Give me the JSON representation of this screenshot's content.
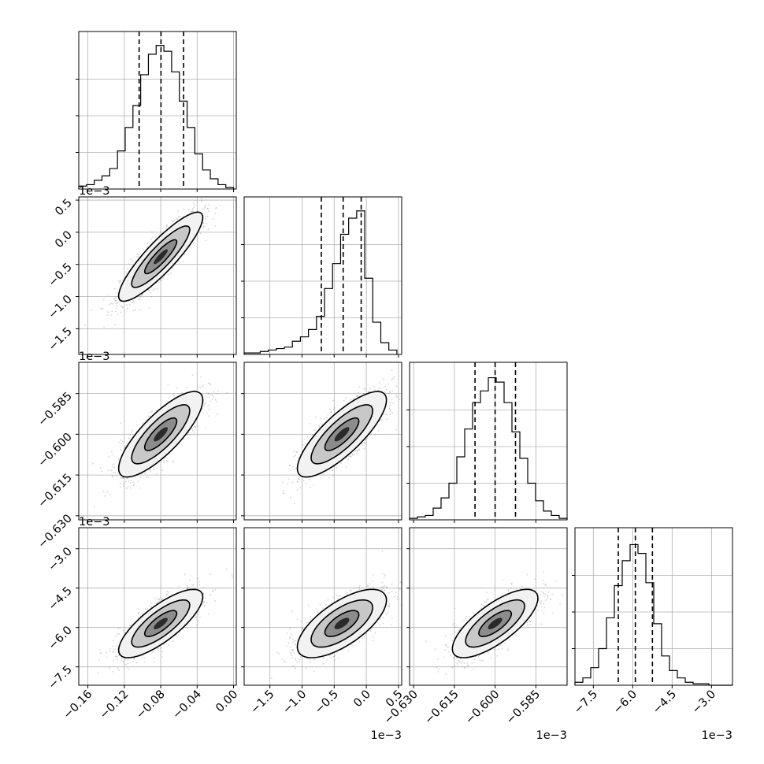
{
  "chart_data": {
    "type": "corner",
    "parameters": [
      {
        "range": [
          -0.17,
          0.003
        ],
        "ticks": [
          -0.16,
          -0.12,
          -0.08,
          -0.04,
          0.0
        ],
        "tick_labels": [
          "−0.16",
          "−0.12",
          "−0.08",
          "−0.04",
          "0.00"
        ],
        "offset_label": "",
        "quantiles": [
          -0.1037,
          -0.0797,
          -0.0549
        ],
        "mean": -0.08,
        "sd": 0.022,
        "hist_peak": 0.55
      },
      {
        "range": [
          -1.9,
          0.55
        ],
        "ticks": [
          -1.5,
          -1.0,
          -0.5,
          0.0,
          0.5
        ],
        "tick_labels": [
          "−1.5",
          "−1.0",
          "−0.5",
          "0.0",
          "0.5"
        ],
        "offset_label": "1e−3",
        "quantiles": [
          -0.7,
          -0.36,
          -0.08
        ],
        "mean": -0.38,
        "sd": 0.33,
        "hist_peak": 0.56
      },
      {
        "range": [
          -0.6315,
          -0.5735
        ],
        "ticks": [
          -0.63,
          -0.615,
          -0.6,
          -0.585
        ],
        "tick_labels": [
          "−0.630",
          "−0.615",
          "−0.600",
          "−0.585"
        ],
        "offset_label": "1e−3",
        "quantiles": [
          -0.6074,
          -0.6,
          -0.5925
        ],
        "mean": -0.6,
        "sd": 0.0075,
        "hist_peak": 0.55
      },
      {
        "range": [
          -8.2,
          -2.2
        ],
        "ticks": [
          -7.5,
          -6.0,
          -4.5,
          -3.0
        ],
        "tick_labels": [
          "−7.5",
          "−6.0",
          "−4.5",
          "−3.0"
        ],
        "offset_label": "1e−3",
        "quantiles": [
          -6.55,
          -5.9,
          -5.25
        ],
        "mean": -5.85,
        "sd": 0.62,
        "hist_peak": 0.55
      }
    ],
    "histograms": [
      {
        "param": 0,
        "edges": [
          -0.17,
          -0.1615,
          -0.153,
          -0.1445,
          -0.136,
          -0.1275,
          -0.119,
          -0.1105,
          -0.102,
          -0.0935,
          -0.085,
          -0.0765,
          -0.068,
          -0.0595,
          -0.051,
          -0.0425,
          -0.034,
          -0.0255,
          -0.017,
          -0.0085,
          0.0
        ],
        "counts": [
          0.02,
          0.03,
          0.06,
          0.09,
          0.14,
          0.26,
          0.42,
          0.57,
          0.78,
          0.92,
          0.98,
          0.94,
          0.8,
          0.6,
          0.42,
          0.24,
          0.13,
          0.07,
          0.03,
          0.01
        ]
      },
      {
        "param": 1,
        "edges": [
          -1.9,
          -1.775,
          -1.65,
          -1.525,
          -1.4,
          -1.275,
          -1.15,
          -1.025,
          -0.9,
          -0.775,
          -0.65,
          -0.525,
          -0.4,
          -0.275,
          -0.15,
          -0.025,
          0.1,
          0.225,
          0.35,
          0.475
        ],
        "counts": [
          0.01,
          0.01,
          0.02,
          0.03,
          0.04,
          0.05,
          0.09,
          0.12,
          0.17,
          0.26,
          0.45,
          0.62,
          0.82,
          0.93,
          0.98,
          0.52,
          0.22,
          0.08,
          0.03
        ]
      },
      {
        "param": 2,
        "edges": [
          -0.6315,
          -0.6286,
          -0.6257,
          -0.6228,
          -0.6199,
          -0.617,
          -0.6141,
          -0.6112,
          -0.6083,
          -0.6054,
          -0.6025,
          -0.5996,
          -0.5967,
          -0.5938,
          -0.5909,
          -0.588,
          -0.5851,
          -0.5822,
          -0.5793,
          -0.5764,
          -0.5735
        ],
        "counts": [
          0.01,
          0.02,
          0.03,
          0.08,
          0.15,
          0.25,
          0.43,
          0.62,
          0.8,
          0.88,
          0.97,
          0.94,
          0.8,
          0.6,
          0.42,
          0.25,
          0.13,
          0.06,
          0.03,
          0.01
        ]
      },
      {
        "param": 3,
        "edges": [
          -8.2,
          -7.9,
          -7.6,
          -7.3,
          -7.0,
          -6.7,
          -6.4,
          -6.1,
          -5.8,
          -5.5,
          -5.2,
          -4.9,
          -4.6,
          -4.3,
          -4.0,
          -3.7,
          -3.4,
          -3.1,
          -2.8,
          -2.5,
          -2.2
        ],
        "counts": [
          0.02,
          0.05,
          0.12,
          0.25,
          0.46,
          0.68,
          0.85,
          0.96,
          0.9,
          0.7,
          0.42,
          0.2,
          0.1,
          0.05,
          0.02,
          0.01,
          0.01,
          0.0,
          0.0,
          0.0
        ]
      }
    ],
    "pairs": [
      {
        "x": 0,
        "y": 1,
        "correlation": 0.88
      },
      {
        "x": 0,
        "y": 2,
        "correlation": 0.8
      },
      {
        "x": 1,
        "y": 2,
        "correlation": 0.8
      },
      {
        "x": 0,
        "y": 3,
        "correlation": 0.78
      },
      {
        "x": 1,
        "y": 3,
        "correlation": 0.68
      },
      {
        "x": 2,
        "y": 3,
        "correlation": 0.74
      }
    ],
    "contour_levels_sigma": [
      0.8,
      1.45,
      2.1
    ],
    "grid": true,
    "colors": {
      "hist": "#000000",
      "scatter": "#808080",
      "contour": "#000000",
      "grid": "#b0b0b0"
    }
  }
}
